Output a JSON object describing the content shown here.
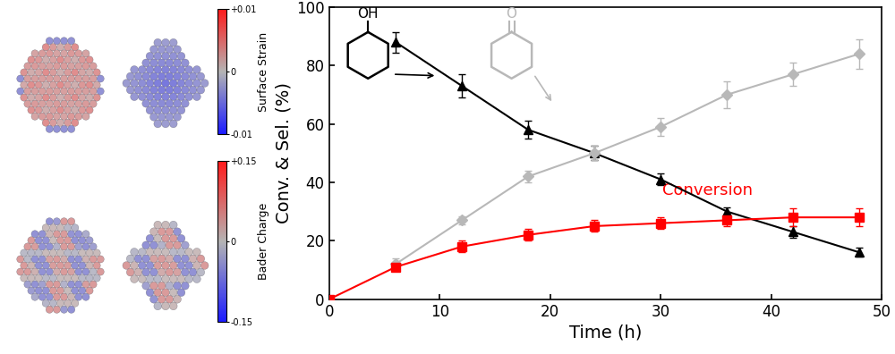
{
  "chart_data": {
    "type": "line",
    "xlabel": "Time (h)",
    "ylabel": "Conv. & Sel. (%)",
    "xlim": [
      0,
      50
    ],
    "xticks": [
      0,
      10,
      20,
      30,
      40,
      50
    ],
    "ylim": [
      0,
      100
    ],
    "yticks": [
      0,
      20,
      40,
      60,
      80,
      100
    ],
    "grid": false,
    "series": [
      {
        "structure_label": "OH",
        "color": "#000000",
        "marker": "triangle",
        "line_style": "solid",
        "x": [
          6,
          12,
          18,
          24,
          30,
          36,
          42,
          48
        ],
        "values": [
          88,
          73,
          58,
          50,
          41,
          30,
          23,
          16
        ],
        "errors": [
          3.5,
          4,
          3,
          2.5,
          2,
          1.5,
          2,
          1.5
        ]
      },
      {
        "structure_label": "O",
        "color": "#b8b8b8",
        "marker": "diamond",
        "line_style": "solid",
        "x": [
          6,
          12,
          18,
          24,
          30,
          36,
          42,
          48
        ],
        "values": [
          12,
          27,
          42,
          50,
          59,
          70,
          77,
          84
        ],
        "errors": [
          2,
          1.5,
          2,
          2.5,
          3,
          4.5,
          4,
          5
        ]
      },
      {
        "name": "Conversion",
        "color": "#ff0000",
        "marker": "square",
        "line_style": "solid",
        "x": [
          0,
          6,
          12,
          18,
          24,
          30,
          36,
          42,
          48
        ],
        "values": [
          0,
          11,
          18,
          22,
          25,
          26,
          27,
          28,
          28
        ],
        "errors": [
          0,
          1,
          2,
          2,
          2,
          2,
          2,
          3,
          3
        ]
      }
    ]
  },
  "colorbars": [
    {
      "label": "Surface Strain",
      "range": [
        -0.01,
        0.01
      ],
      "ticks": [
        {
          "value": 0.01,
          "label": "+0.01"
        },
        0,
        {
          "value": -0.01,
          "label": "-0.01"
        }
      ]
    },
    {
      "label": "Bader Charge",
      "range": [
        -0.15,
        0.15
      ],
      "ticks": [
        {
          "value": 0.15,
          "label": "+0.15"
        },
        0,
        {
          "value": -0.15,
          "label": "-0.15"
        }
      ]
    }
  ]
}
